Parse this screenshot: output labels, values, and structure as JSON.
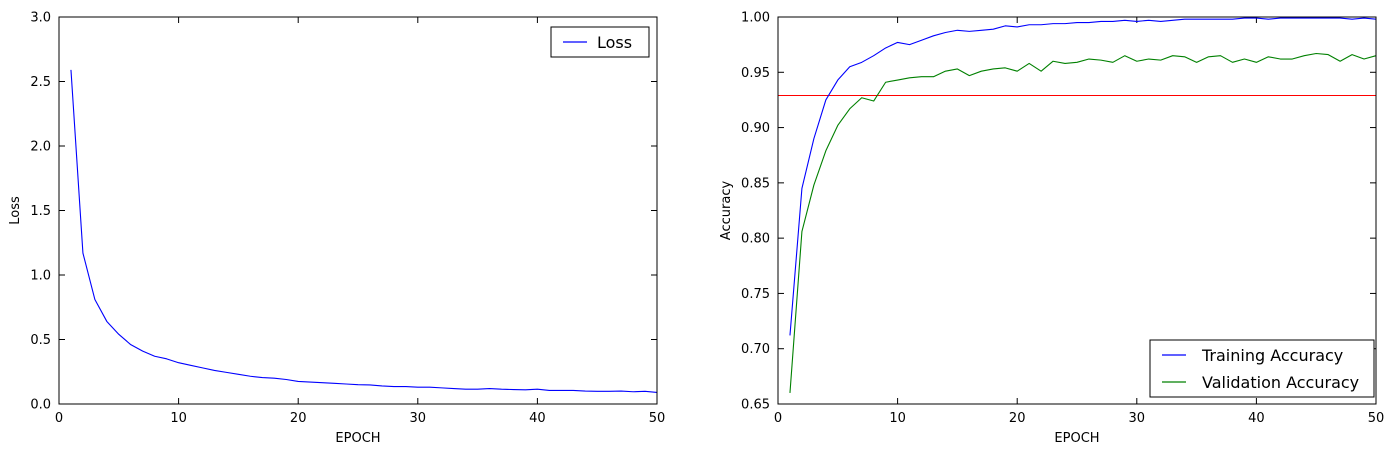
{
  "chart_data": [
    {
      "type": "line",
      "xlabel": "EPOCH",
      "ylabel": "Loss",
      "xlim": [
        0,
        50
      ],
      "ylim": [
        0.0,
        3.0
      ],
      "xticks": [
        "0",
        "10",
        "20",
        "30",
        "40",
        "50"
      ],
      "yticks": [
        "0.0",
        "0.5",
        "1.0",
        "1.5",
        "2.0",
        "2.5",
        "3.0"
      ],
      "legend_position": "top-right",
      "series": [
        {
          "name": "Loss",
          "color": "#0000ff",
          "x": [
            1,
            2,
            3,
            4,
            5,
            6,
            7,
            8,
            9,
            10,
            11,
            12,
            13,
            14,
            15,
            16,
            17,
            18,
            19,
            20,
            21,
            22,
            23,
            24,
            25,
            26,
            27,
            28,
            29,
            30,
            31,
            32,
            33,
            34,
            35,
            36,
            37,
            38,
            39,
            40,
            41,
            42,
            43,
            44,
            45,
            46,
            47,
            48,
            49,
            50
          ],
          "values": [
            2.59,
            1.17,
            0.81,
            0.64,
            0.54,
            0.46,
            0.41,
            0.37,
            0.35,
            0.32,
            0.3,
            0.28,
            0.26,
            0.245,
            0.23,
            0.215,
            0.205,
            0.2,
            0.19,
            0.175,
            0.17,
            0.165,
            0.16,
            0.155,
            0.15,
            0.148,
            0.14,
            0.135,
            0.135,
            0.13,
            0.13,
            0.125,
            0.12,
            0.115,
            0.115,
            0.12,
            0.115,
            0.112,
            0.11,
            0.115,
            0.105,
            0.105,
            0.105,
            0.1,
            0.098,
            0.098,
            0.1,
            0.095,
            0.098,
            0.09
          ]
        }
      ]
    },
    {
      "type": "line",
      "xlabel": "EPOCH",
      "ylabel": "Accuracy",
      "xlim": [
        0,
        50
      ],
      "ylim": [
        0.65,
        1.0
      ],
      "xticks": [
        "0",
        "10",
        "20",
        "30",
        "40",
        "50"
      ],
      "yticks": [
        "0.65",
        "0.70",
        "0.75",
        "0.80",
        "0.85",
        "0.90",
        "0.95",
        "1.00"
      ],
      "legend_position": "bottom-right",
      "hline": {
        "y": 0.929,
        "color": "#ff0000"
      },
      "series": [
        {
          "name": "Training Accuracy",
          "color": "#0000ff",
          "x": [
            1,
            2,
            3,
            4,
            5,
            6,
            7,
            8,
            9,
            10,
            11,
            12,
            13,
            14,
            15,
            16,
            17,
            18,
            19,
            20,
            21,
            22,
            23,
            24,
            25,
            26,
            27,
            28,
            29,
            30,
            31,
            32,
            33,
            34,
            35,
            36,
            37,
            38,
            39,
            40,
            41,
            42,
            43,
            44,
            45,
            46,
            47,
            48,
            49,
            50
          ],
          "values": [
            0.712,
            0.845,
            0.89,
            0.925,
            0.943,
            0.955,
            0.959,
            0.965,
            0.972,
            0.977,
            0.975,
            0.979,
            0.983,
            0.986,
            0.988,
            0.987,
            0.988,
            0.989,
            0.992,
            0.991,
            0.993,
            0.993,
            0.994,
            0.994,
            0.995,
            0.995,
            0.996,
            0.996,
            0.997,
            0.996,
            0.997,
            0.996,
            0.997,
            0.998,
            0.998,
            0.998,
            0.998,
            0.998,
            0.999,
            0.999,
            0.998,
            0.999,
            0.999,
            0.999,
            0.999,
            0.999,
            0.999,
            0.998,
            0.999,
            0.998
          ]
        },
        {
          "name": "Validation Accuracy",
          "color": "#008000",
          "x": [
            1,
            2,
            3,
            4,
            5,
            6,
            7,
            8,
            9,
            10,
            11,
            12,
            13,
            14,
            15,
            16,
            17,
            18,
            19,
            20,
            21,
            22,
            23,
            24,
            25,
            26,
            27,
            28,
            29,
            30,
            31,
            32,
            33,
            34,
            35,
            36,
            37,
            38,
            39,
            40,
            41,
            42,
            43,
            44,
            45,
            46,
            47,
            48,
            49,
            50
          ],
          "values": [
            0.66,
            0.806,
            0.848,
            0.879,
            0.902,
            0.917,
            0.927,
            0.924,
            0.941,
            0.943,
            0.945,
            0.946,
            0.946,
            0.951,
            0.953,
            0.947,
            0.951,
            0.953,
            0.954,
            0.951,
            0.958,
            0.951,
            0.96,
            0.958,
            0.959,
            0.962,
            0.961,
            0.959,
            0.965,
            0.96,
            0.962,
            0.961,
            0.965,
            0.964,
            0.959,
            0.964,
            0.965,
            0.959,
            0.962,
            0.959,
            0.964,
            0.962,
            0.962,
            0.965,
            0.967,
            0.966,
            0.96,
            0.966,
            0.962,
            0.965
          ]
        }
      ]
    }
  ]
}
